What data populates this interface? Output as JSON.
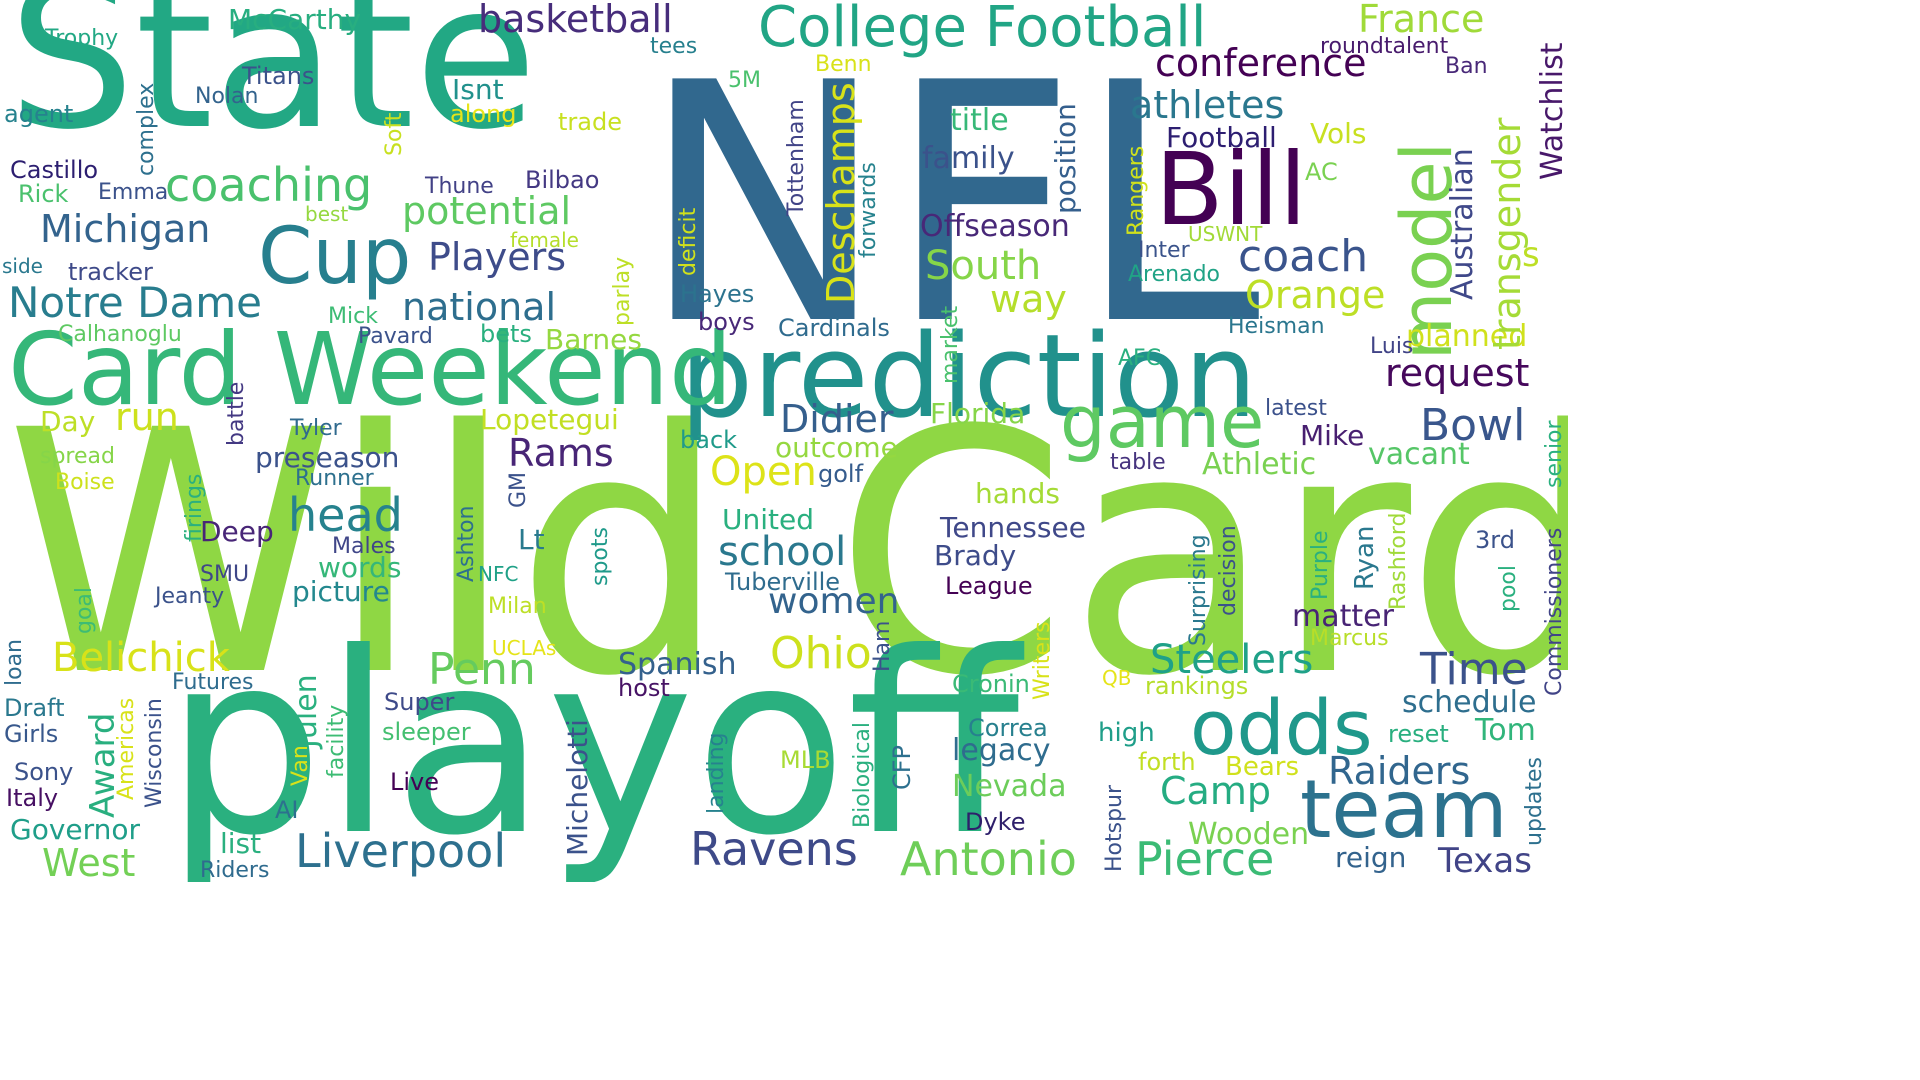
{
  "title": "",
  "words": [
    {
      "text": "Wild Card",
      "color": "#8fd744"
    },
    {
      "text": "playoff",
      "color": "#2ab07f"
    },
    {
      "text": "NFL",
      "color": "#31688e"
    },
    {
      "text": "State",
      "color": "#22a884"
    },
    {
      "text": "prediction",
      "color": "#21918c"
    },
    {
      "text": "Card Weekend",
      "color": "#35b779"
    },
    {
      "text": "Bill",
      "color": "#440154"
    },
    {
      "text": "College Football",
      "color": "#21a585"
    },
    {
      "text": "team",
      "color": "#2c728e"
    },
    {
      "text": "odds",
      "color": "#1f988b"
    },
    {
      "text": "Cup",
      "color": "#277f8e"
    },
    {
      "text": "game",
      "color": "#5ec962"
    },
    {
      "text": "model",
      "color": "#7ad151"
    },
    {
      "text": "Liverpool",
      "color": "#2d708e"
    },
    {
      "text": "Antonio",
      "color": "#6ece58"
    },
    {
      "text": "Pierce",
      "color": "#3bbb75"
    },
    {
      "text": "Ravens",
      "color": "#3e4a89"
    },
    {
      "text": "coaching",
      "color": "#4ac16d"
    },
    {
      "text": "Notre Dame",
      "color": "#287d8e"
    },
    {
      "text": "head",
      "color": "#26828e"
    },
    {
      "text": "national",
      "color": "#2e6e8e"
    },
    {
      "text": "Michigan",
      "color": "#33638d"
    },
    {
      "text": "coach",
      "color": "#3a548c"
    },
    {
      "text": "Penn",
      "color": "#65cb5e"
    },
    {
      "text": "Ohio",
      "color": "#cde11d"
    },
    {
      "text": "school",
      "color": "#2a788e"
    },
    {
      "text": "Time",
      "color": "#3b528b"
    },
    {
      "text": "conference",
      "color": "#440154"
    },
    {
      "text": "athletes",
      "color": "#2a778e"
    },
    {
      "text": "basketball",
      "color": "#472d7b"
    },
    {
      "text": "France",
      "color": "#a0da39"
    },
    {
      "text": "potential",
      "color": "#5ec962"
    },
    {
      "text": "South",
      "color": "#86d549"
    },
    {
      "text": "Orange",
      "color": "#bddf26"
    },
    {
      "text": "Players",
      "color": "#3e4c8a"
    },
    {
      "text": "Belichick",
      "color": "#d8e219"
    },
    {
      "text": "Steelers",
      "color": "#1fa188"
    },
    {
      "text": "Raiders",
      "color": "#31668e"
    },
    {
      "text": "Camp",
      "color": "#25ac82"
    },
    {
      "text": "Texas",
      "color": "#414487"
    },
    {
      "text": "West",
      "color": "#73d056"
    },
    {
      "text": "Governor",
      "color": "#1f9e89"
    },
    {
      "text": "Bowl",
      "color": "#39568c"
    },
    {
      "text": "request",
      "color": "#46085c"
    },
    {
      "text": "Didier",
      "color": "#355f8d"
    },
    {
      "text": "Rams",
      "color": "#482576"
    },
    {
      "text": "Open",
      "color": "#dde318"
    },
    {
      "text": "run",
      "color": "#cde11d"
    },
    {
      "text": "women",
      "color": "#33638d"
    },
    {
      "text": "Tennessee",
      "color": "#3f4889"
    },
    {
      "text": "Brady",
      "color": "#3e4c8a"
    },
    {
      "text": "Athletic",
      "color": "#7ad151"
    },
    {
      "text": "vacant",
      "color": "#56c667"
    },
    {
      "text": "Football",
      "color": "#2d1e71"
    },
    {
      "text": "family",
      "color": "#3b528b"
    },
    {
      "text": "Offseason",
      "color": "#482878"
    },
    {
      "text": "way",
      "color": "#b5de2b"
    },
    {
      "text": "planned",
      "color": "#d0e11c"
    },
    {
      "text": "Deschamps",
      "color": "#d8e219"
    },
    {
      "text": "Australian",
      "color": "#3f4889"
    },
    {
      "text": "transgender",
      "color": "#a5db36"
    },
    {
      "text": "Watchlist",
      "color": "#48186a"
    },
    {
      "text": "s",
      "color": "#bddf26"
    },
    {
      "text": "Florida",
      "color": "#86d549"
    },
    {
      "text": "outcome",
      "color": "#95d840"
    },
    {
      "text": "preseason",
      "color": "#3b528b"
    },
    {
      "text": "Lopetegui",
      "color": "#c2df23"
    },
    {
      "text": "Mike",
      "color": "#481f70"
    },
    {
      "text": "latest",
      "color": "#3b518b"
    },
    {
      "text": "table",
      "color": "#46337e"
    },
    {
      "text": "golf",
      "color": "#365c8d"
    },
    {
      "text": "back",
      "color": "#1f9a8a"
    },
    {
      "text": "hands",
      "color": "#a5db36"
    },
    {
      "text": "United",
      "color": "#2ab07f"
    },
    {
      "text": "Tuberville",
      "color": "#2f6c8e"
    },
    {
      "text": "League",
      "color": "#440154"
    },
    {
      "text": "Spanish",
      "color": "#34618d"
    },
    {
      "text": "host",
      "color": "#471365"
    },
    {
      "text": "Cronin",
      "color": "#3aba76"
    },
    {
      "text": "Correa",
      "color": "#27808e"
    },
    {
      "text": "legacy",
      "color": "#2f6c8e"
    },
    {
      "text": "Nevada",
      "color": "#6ccd5a"
    },
    {
      "text": "Dyke",
      "color": "#2e1f6b"
    },
    {
      "text": "Wooden",
      "color": "#7ad151"
    },
    {
      "text": "reign",
      "color": "#33638d"
    },
    {
      "text": "Live",
      "color": "#440154"
    },
    {
      "text": "MLB",
      "color": "#a8db34"
    },
    {
      "text": "high",
      "color": "#1f9e89"
    },
    {
      "text": "forth",
      "color": "#c2df23"
    },
    {
      "text": "Bears",
      "color": "#d0e11c"
    },
    {
      "text": "rankings",
      "color": "#b5de2b"
    },
    {
      "text": "schedule",
      "color": "#2e6e8e"
    },
    {
      "text": "reset",
      "color": "#29af7f"
    },
    {
      "text": "Tom",
      "color": "#31b57b"
    },
    {
      "text": "matter",
      "color": "#482475"
    },
    {
      "text": "Marcus",
      "color": "#b8de29"
    },
    {
      "text": "3rd",
      "color": "#3b528b"
    },
    {
      "text": "Heisman",
      "color": "#2a768e"
    },
    {
      "text": "Luis",
      "color": "#414487"
    },
    {
      "text": "AFC",
      "color": "#2ab07f"
    },
    {
      "text": "Cardinals",
      "color": "#2f6b8e"
    },
    {
      "text": "boys",
      "color": "#482878"
    },
    {
      "text": "Hayes",
      "color": "#2c738e"
    },
    {
      "text": "Barnes",
      "color": "#95d840"
    },
    {
      "text": "bets",
      "color": "#2ab07f"
    },
    {
      "text": "Pavard",
      "color": "#3b528b"
    },
    {
      "text": "Mick",
      "color": "#3dbc74"
    },
    {
      "text": "Calhanoglu",
      "color": "#5ec962"
    },
    {
      "text": "Isnt",
      "color": "#21918c"
    },
    {
      "text": "along",
      "color": "#e7e419"
    },
    {
      "text": "trade",
      "color": "#c8e020"
    },
    {
      "text": "title",
      "color": "#37b878"
    },
    {
      "text": "5M",
      "color": "#4ac16d"
    },
    {
      "text": "Benn",
      "color": "#d8e219"
    },
    {
      "text": "tees",
      "color": "#27808e"
    },
    {
      "text": "roundtalent",
      "color": "#481b6d"
    },
    {
      "text": "Ban",
      "color": "#482878"
    },
    {
      "text": "Vols",
      "color": "#c8e020"
    },
    {
      "text": "AC",
      "color": "#7ad151"
    },
    {
      "text": "Inter",
      "color": "#3a538b"
    },
    {
      "text": "USWNT",
      "color": "#a2da37"
    },
    {
      "text": "Arenado",
      "color": "#20a386"
    },
    {
      "text": "McCarthy",
      "color": "#28ae80"
    },
    {
      "text": "Trophy",
      "color": "#22a884"
    },
    {
      "text": "Titans",
      "color": "#3b528b"
    },
    {
      "text": "Nolan",
      "color": "#33638d"
    },
    {
      "text": "agent",
      "color": "#26828e"
    },
    {
      "text": "Castillo",
      "color": "#2c1e70"
    },
    {
      "text": "Rick",
      "color": "#4ac16d"
    },
    {
      "text": "Emma",
      "color": "#3b528b"
    },
    {
      "text": "Thune",
      "color": "#424186"
    },
    {
      "text": "Bilbao",
      "color": "#443983"
    },
    {
      "text": "best",
      "color": "#95d840"
    },
    {
      "text": "female",
      "color": "#b5de2b"
    },
    {
      "text": "side",
      "color": "#29788e"
    },
    {
      "text": "tracker",
      "color": "#3e4a89"
    },
    {
      "text": "Day",
      "color": "#bddf26"
    },
    {
      "text": "Tyler",
      "color": "#306a8e"
    },
    {
      "text": "spread",
      "color": "#86d549"
    },
    {
      "text": "Boise",
      "color": "#cde11d"
    },
    {
      "text": "Runner",
      "color": "#2d708e"
    },
    {
      "text": "Deep",
      "color": "#482677"
    },
    {
      "text": "Lt",
      "color": "#297a8e"
    },
    {
      "text": "NFC",
      "color": "#1fa187"
    },
    {
      "text": "Males",
      "color": "#404688"
    },
    {
      "text": "words",
      "color": "#35b779"
    },
    {
      "text": "picture",
      "color": "#23888e"
    },
    {
      "text": "SMU",
      "color": "#3f4788"
    },
    {
      "text": "Jeanty",
      "color": "#3b528b"
    },
    {
      "text": "Milan",
      "color": "#bddf26"
    },
    {
      "text": "UCLAs",
      "color": "#e5e419"
    },
    {
      "text": "Futures",
      "color": "#2f6c8e"
    },
    {
      "text": "Draft",
      "color": "#2a788e"
    },
    {
      "text": "Girls",
      "color": "#38588c"
    },
    {
      "text": "Sony",
      "color": "#3b528b"
    },
    {
      "text": "Italy",
      "color": "#471063"
    },
    {
      "text": "Super",
      "color": "#3e4a89"
    },
    {
      "text": "sleeper",
      "color": "#44bf70"
    },
    {
      "text": "AI",
      "color": "#2c718e"
    },
    {
      "text": "list",
      "color": "#2ab07f"
    },
    {
      "text": "Riders",
      "color": "#2f6b8e"
    },
    {
      "text": "QB",
      "color": "#e5e419"
    },
    {
      "text": "complex",
      "color": "#2d708e"
    },
    {
      "text": "Soft",
      "color": "#c8e020"
    },
    {
      "text": "Tottenham",
      "color": "#414487"
    },
    {
      "text": "deficit",
      "color": "#d0e11c"
    },
    {
      "text": "parlay",
      "color": "#bddf26"
    },
    {
      "text": "forwards",
      "color": "#26828e"
    },
    {
      "text": "position",
      "color": "#355f8d"
    },
    {
      "text": "Rangers",
      "color": "#d0e11c"
    },
    {
      "text": "market",
      "color": "#4ac16d"
    },
    {
      "text": "battle",
      "color": "#443983"
    },
    {
      "text": "firings",
      "color": "#2ab07f"
    },
    {
      "text": "Ashton",
      "color": "#2d708e"
    },
    {
      "text": "GM",
      "color": "#3b528b"
    },
    {
      "text": "spots",
      "color": "#1f9a8a"
    },
    {
      "text": "goal",
      "color": "#3dbc74"
    },
    {
      "text": "loan",
      "color": "#2f6c8e"
    },
    {
      "text": "Award",
      "color": "#29af7f"
    },
    {
      "text": "Americas",
      "color": "#d8e219"
    },
    {
      "text": "Wisconsin",
      "color": "#3b528b"
    },
    {
      "text": "Julen",
      "color": "#2ab07f"
    },
    {
      "text": "facility",
      "color": "#3dbc74"
    },
    {
      "text": "Van",
      "color": "#d8e219"
    },
    {
      "text": "Michelotti",
      "color": "#3b528b"
    },
    {
      "text": "Ham",
      "color": "#3b528b"
    },
    {
      "text": "landing",
      "color": "#26828e"
    },
    {
      "text": "Biological",
      "color": "#2ab07f"
    },
    {
      "text": "CFP",
      "color": "#2d708e"
    },
    {
      "text": "Writers",
      "color": "#d8e219"
    },
    {
      "text": "Hotspur",
      "color": "#3b528b"
    },
    {
      "text": "Surprising",
      "color": "#2a788e"
    },
    {
      "text": "decision",
      "color": "#3b528b"
    },
    {
      "text": "Purple",
      "color": "#2ab07f"
    },
    {
      "text": "Ryan",
      "color": "#2a788e"
    },
    {
      "text": "Rashford",
      "color": "#a0da39"
    },
    {
      "text": "pool",
      "color": "#2ab07f"
    },
    {
      "text": "updates",
      "color": "#2d708e"
    },
    {
      "text": "Commissioners",
      "color": "#414487"
    },
    {
      "text": "senior",
      "color": "#2ab07f"
    }
  ]
}
